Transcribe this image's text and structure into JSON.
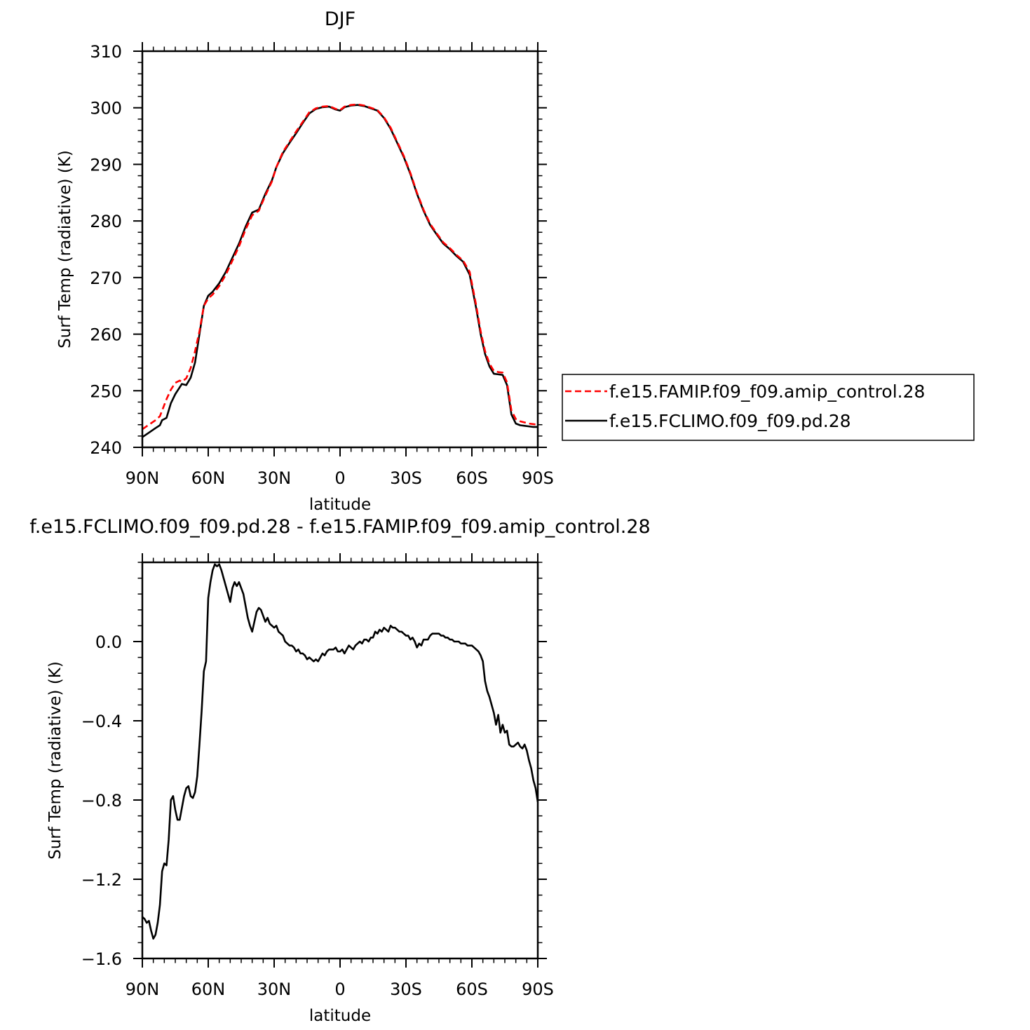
{
  "chart_data": [
    {
      "type": "line",
      "title": "DJF",
      "xlabel": "latitude",
      "ylabel": "Surf Temp (radiative) (K)",
      "xlim": [
        -90,
        90
      ],
      "ylim": [
        240,
        310
      ],
      "x_tick_values": [
        -90,
        -60,
        -30,
        0,
        30,
        60,
        90
      ],
      "x_tick_labels": [
        "90N",
        "60N",
        "30N",
        "0",
        "30S",
        "60S",
        "90S"
      ],
      "y_tick_values": [
        240,
        250,
        260,
        270,
        280,
        290,
        300,
        310
      ],
      "y_tick_labels": [
        "240",
        "250",
        "260",
        "270",
        "280",
        "290",
        "300",
        "310"
      ],
      "legend_position": "right",
      "series": [
        {
          "name": "f.e15.FAMIP.f09_f09.amip_control.28",
          "color": "#ff0000",
          "dash": "dashed",
          "x": [
            -90,
            -87,
            -84,
            -82,
            -81,
            -79,
            -77,
            -75,
            -73,
            -72,
            -70,
            -68,
            -66,
            -64,
            -62,
            -60,
            -58,
            -55,
            -52,
            -49,
            -46,
            -43,
            -40,
            -37,
            -34,
            -31,
            -29,
            -26,
            -23,
            -20,
            -17,
            -14,
            -11,
            -8,
            -5,
            -2,
            0,
            2,
            5,
            8,
            11,
            14,
            17,
            20,
            23,
            26,
            29,
            32,
            35,
            38,
            41,
            44,
            47,
            50,
            53,
            56,
            59,
            62,
            64,
            66,
            68,
            70,
            72,
            74,
            76,
            78,
            80,
            82,
            84,
            86,
            88,
            90
          ],
          "y": [
            243.2,
            244.0,
            244.8,
            245.5,
            246.5,
            248.5,
            250.2,
            251.4,
            251.8,
            251.6,
            252.2,
            254.0,
            257.0,
            260.5,
            265.0,
            266.3,
            267.0,
            268.5,
            270.5,
            273.0,
            275.5,
            278.5,
            281.0,
            281.8,
            284.5,
            287.0,
            289.5,
            292.2,
            294.0,
            295.8,
            297.5,
            299.2,
            299.9,
            300.2,
            300.3,
            299.8,
            299.6,
            300.2,
            300.5,
            300.6,
            300.4,
            300.0,
            299.6,
            298.3,
            296.5,
            294.0,
            291.5,
            288.5,
            285.0,
            282.0,
            279.5,
            277.8,
            276.2,
            275.2,
            274.0,
            273.0,
            271.0,
            265.0,
            260.5,
            257.0,
            254.8,
            253.5,
            253.3,
            253.2,
            251.5,
            246.5,
            245.0,
            244.6,
            244.4,
            244.2,
            244.1,
            244.0
          ]
        },
        {
          "name": "f.e15.FCLIMO.f09_f09.pd.28",
          "color": "#000000",
          "dash": "solid",
          "x": [
            -90,
            -87,
            -84,
            -82,
            -81,
            -79,
            -77,
            -75,
            -73,
            -72,
            -70,
            -68,
            -66,
            -64,
            -62,
            -60,
            -58,
            -55,
            -52,
            -49,
            -46,
            -43,
            -40,
            -37,
            -34,
            -31,
            -29,
            -26,
            -23,
            -20,
            -17,
            -14,
            -11,
            -8,
            -5,
            -2,
            0,
            2,
            5,
            8,
            11,
            14,
            17,
            20,
            23,
            26,
            29,
            32,
            35,
            38,
            41,
            44,
            47,
            50,
            53,
            56,
            59,
            62,
            64,
            66,
            68,
            70,
            72,
            74,
            76,
            78,
            80,
            82,
            84,
            86,
            88,
            90
          ],
          "y": [
            241.8,
            242.6,
            243.4,
            243.9,
            244.8,
            245.2,
            247.8,
            249.4,
            250.6,
            251.2,
            251.0,
            252.3,
            255.0,
            260.0,
            265.0,
            266.8,
            267.5,
            269.0,
            271.0,
            273.5,
            276.0,
            279.0,
            281.5,
            282.0,
            284.8,
            287.2,
            289.5,
            292.0,
            293.8,
            295.5,
            297.3,
            299.0,
            299.8,
            300.1,
            300.2,
            299.7,
            299.5,
            300.1,
            300.4,
            300.5,
            300.3,
            299.9,
            299.5,
            298.2,
            296.3,
            293.8,
            291.3,
            288.3,
            284.8,
            281.8,
            279.3,
            277.6,
            276.0,
            275.0,
            273.8,
            272.8,
            270.5,
            264.5,
            260.0,
            256.5,
            254.3,
            253.0,
            252.9,
            252.8,
            251.0,
            245.8,
            244.2,
            243.9,
            243.8,
            243.7,
            243.6,
            243.6
          ]
        }
      ]
    },
    {
      "type": "line",
      "title": "f.e15.FCLIMO.f09_f09.pd.28 - f.e15.FAMIP.f09_f09.amip_control.28",
      "xlabel": "latitude",
      "ylabel": "Surf Temp (radiative) (K)",
      "xlim": [
        -90,
        90
      ],
      "ylim": [
        -1.6,
        0.4
      ],
      "x_tick_values": [
        -90,
        -60,
        -30,
        0,
        30,
        60,
        90
      ],
      "x_tick_labels": [
        "90N",
        "60N",
        "30N",
        "0",
        "30S",
        "60S",
        "90S"
      ],
      "y_tick_values": [
        -1.6,
        -1.2,
        -0.8,
        -0.4,
        0.0
      ],
      "y_tick_labels": [
        "−1.6",
        "−1.2",
        "−0.8",
        "−0.4",
        "0.0"
      ],
      "series": [
        {
          "name": "",
          "color": "#000000",
          "dash": "solid",
          "x": [
            -90,
            -89,
            -88,
            -87,
            -86,
            -85,
            -84,
            -83,
            -82,
            -81,
            -80,
            -79,
            -78,
            -77,
            -76,
            -75,
            -74,
            -73,
            -72,
            -71,
            -70,
            -69,
            -68,
            -67,
            -66,
            -65,
            -64,
            -63,
            -62,
            -61,
            -60,
            -59,
            -58,
            -57,
            -56,
            -55,
            -54,
            -53,
            -52,
            -51,
            -50,
            -49,
            -48,
            -47,
            -46,
            -45,
            -44,
            -43,
            -42,
            -41,
            -40,
            -39,
            -38,
            -37,
            -36,
            -35,
            -34,
            -33,
            -32,
            -31,
            -30,
            -29,
            -28,
            -27,
            -26,
            -25,
            -24,
            -23,
            -22,
            -21,
            -20,
            -19,
            -18,
            -17,
            -16,
            -15,
            -14,
            -13,
            -12,
            -11,
            -10,
            -9,
            -8,
            -7,
            -6,
            -5,
            -4,
            -3,
            -2,
            -1,
            0,
            1,
            2,
            3,
            4,
            5,
            6,
            7,
            8,
            9,
            10,
            11,
            12,
            13,
            14,
            15,
            16,
            17,
            18,
            19,
            20,
            21,
            22,
            23,
            24,
            25,
            26,
            27,
            28,
            29,
            30,
            31,
            32,
            33,
            34,
            35,
            36,
            37,
            38,
            39,
            40,
            41,
            42,
            43,
            44,
            45,
            46,
            47,
            48,
            49,
            50,
            51,
            52,
            53,
            54,
            55,
            56,
            57,
            58,
            59,
            60,
            61,
            62,
            63,
            64,
            65,
            66,
            67,
            68,
            69,
            70,
            71,
            72,
            73,
            74,
            75,
            76,
            77,
            78,
            79,
            80,
            81,
            82,
            83,
            84,
            85,
            86,
            87,
            88,
            89,
            90
          ],
          "y": [
            -1.39,
            -1.4,
            -1.42,
            -1.41,
            -1.46,
            -1.5,
            -1.48,
            -1.42,
            -1.33,
            -1.16,
            -1.12,
            -1.13,
            -1.0,
            -0.8,
            -0.78,
            -0.85,
            -0.9,
            -0.9,
            -0.84,
            -0.78,
            -0.74,
            -0.73,
            -0.78,
            -0.79,
            -0.76,
            -0.68,
            -0.52,
            -0.35,
            -0.15,
            -0.1,
            0.22,
            0.3,
            0.36,
            0.39,
            0.38,
            0.39,
            0.36,
            0.32,
            0.28,
            0.24,
            0.2,
            0.27,
            0.3,
            0.28,
            0.3,
            0.27,
            0.24,
            0.18,
            0.12,
            0.08,
            0.05,
            0.1,
            0.15,
            0.17,
            0.16,
            0.13,
            0.1,
            0.12,
            0.09,
            0.08,
            0.07,
            0.08,
            0.05,
            0.04,
            0.03,
            0.0,
            -0.01,
            -0.02,
            -0.02,
            -0.03,
            -0.05,
            -0.04,
            -0.06,
            -0.06,
            -0.07,
            -0.09,
            -0.08,
            -0.09,
            -0.1,
            -0.09,
            -0.1,
            -0.08,
            -0.06,
            -0.07,
            -0.05,
            -0.04,
            -0.04,
            -0.04,
            -0.03,
            -0.05,
            -0.05,
            -0.04,
            -0.06,
            -0.04,
            -0.02,
            -0.03,
            -0.04,
            -0.02,
            -0.01,
            0.0,
            -0.01,
            0.01,
            0.01,
            0.0,
            0.02,
            0.02,
            0.05,
            0.04,
            0.06,
            0.05,
            0.07,
            0.06,
            0.05,
            0.08,
            0.07,
            0.07,
            0.06,
            0.05,
            0.05,
            0.04,
            0.03,
            0.03,
            0.01,
            0.02,
            0.0,
            -0.03,
            -0.01,
            -0.02,
            0.01,
            0.01,
            0.01,
            0.03,
            0.04,
            0.04,
            0.04,
            0.04,
            0.03,
            0.03,
            0.02,
            0.02,
            0.01,
            0.01,
            0.0,
            0.0,
            0.0,
            -0.01,
            -0.01,
            -0.01,
            -0.02,
            -0.02,
            -0.02,
            -0.03,
            -0.04,
            -0.05,
            -0.07,
            -0.1,
            -0.2,
            -0.25,
            -0.28,
            -0.32,
            -0.36,
            -0.42,
            -0.37,
            -0.46,
            -0.42,
            -0.46,
            -0.45,
            -0.52,
            -0.53,
            -0.53,
            -0.52,
            -0.51,
            -0.53,
            -0.54,
            -0.52,
            -0.55,
            -0.6,
            -0.64,
            -0.7,
            -0.74,
            -0.81
          ]
        }
      ]
    }
  ]
}
